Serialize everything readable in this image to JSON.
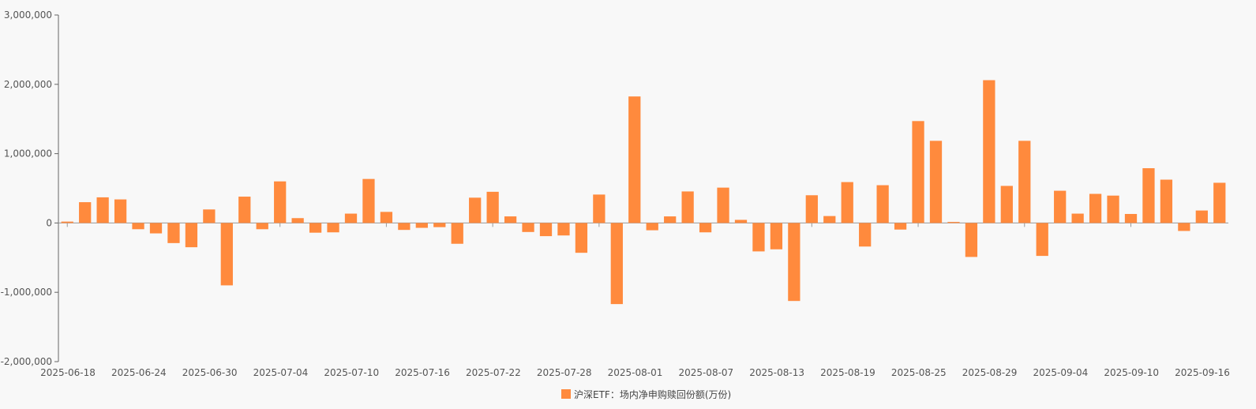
{
  "chart_data": {
    "type": "bar",
    "series": [
      {
        "name": "沪深ETF：场内净申购赎回份额(万份)",
        "color": "#ff8a3d",
        "values": [
          20000,
          300000,
          370000,
          340000,
          -90000,
          -150000,
          -290000,
          -350000,
          195000,
          -900000,
          380000,
          -90000,
          600000,
          70000,
          -140000,
          -135000,
          135000,
          635000,
          160000,
          -100000,
          -70000,
          -60000,
          -300000,
          365000,
          450000,
          95000,
          -130000,
          -190000,
          -180000,
          -430000,
          410000,
          -1170000,
          1825000,
          -105000,
          95000,
          455000,
          -135000,
          510000,
          45000,
          -410000,
          -380000,
          -1125000,
          400000,
          100000,
          590000,
          -340000,
          545000,
          -95000,
          1470000,
          1185000,
          15000,
          -490000,
          2060000,
          535000,
          1185000,
          -475000,
          465000,
          135000,
          420000,
          395000,
          130000,
          790000,
          625000,
          -115000,
          180000,
          580000
        ]
      }
    ],
    "x_tick_labels": [
      "2025-06-18",
      "2025-06-24",
      "2025-06-30",
      "2025-07-04",
      "2025-07-10",
      "2025-07-16",
      "2025-07-22",
      "2025-07-28",
      "2025-08-01",
      "2025-08-07",
      "2025-08-13",
      "2025-08-19",
      "2025-08-25",
      "2025-08-29",
      "2025-09-04",
      "2025-09-10",
      "2025-09-16"
    ],
    "y_tick_labels": [
      "3,000,000",
      "2,000,000",
      "1,000,000",
      "0",
      "-1,000,000",
      "-2,000,000"
    ],
    "y_ticks": [
      3000000,
      2000000,
      1000000,
      0,
      -1000000,
      -2000000
    ],
    "ylim": [
      -2000000,
      3000000
    ],
    "legend_position": "bottom-center",
    "grid": false
  }
}
